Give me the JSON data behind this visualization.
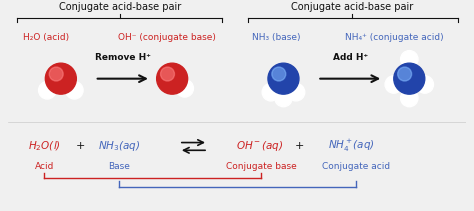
{
  "bg_color": "#f0f0f0",
  "red_color": "#cc2222",
  "blue_color": "#4466bb",
  "dark_blue": "#2244aa",
  "black_color": "#111111",
  "top_label_left": "Conjugate acid-base pair",
  "top_label_right": "Conjugate acid-base pair",
  "left_acid_label": "H₂O (acid)",
  "left_base_label": "OH⁻ (conjugate base)",
  "right_base_label": "NH₃ (base)",
  "right_acid_label": "NH₄⁺ (conjugate acid)",
  "remove_text": "Remove H⁺",
  "add_text": "Add H⁺",
  "label_acid": "Acid",
  "label_base": "Base",
  "label_conj_base": "Conjugate base",
  "label_conj_acid": "Conjugate acid",
  "white": "#ffffff",
  "light_gray": "#e8e8e8"
}
